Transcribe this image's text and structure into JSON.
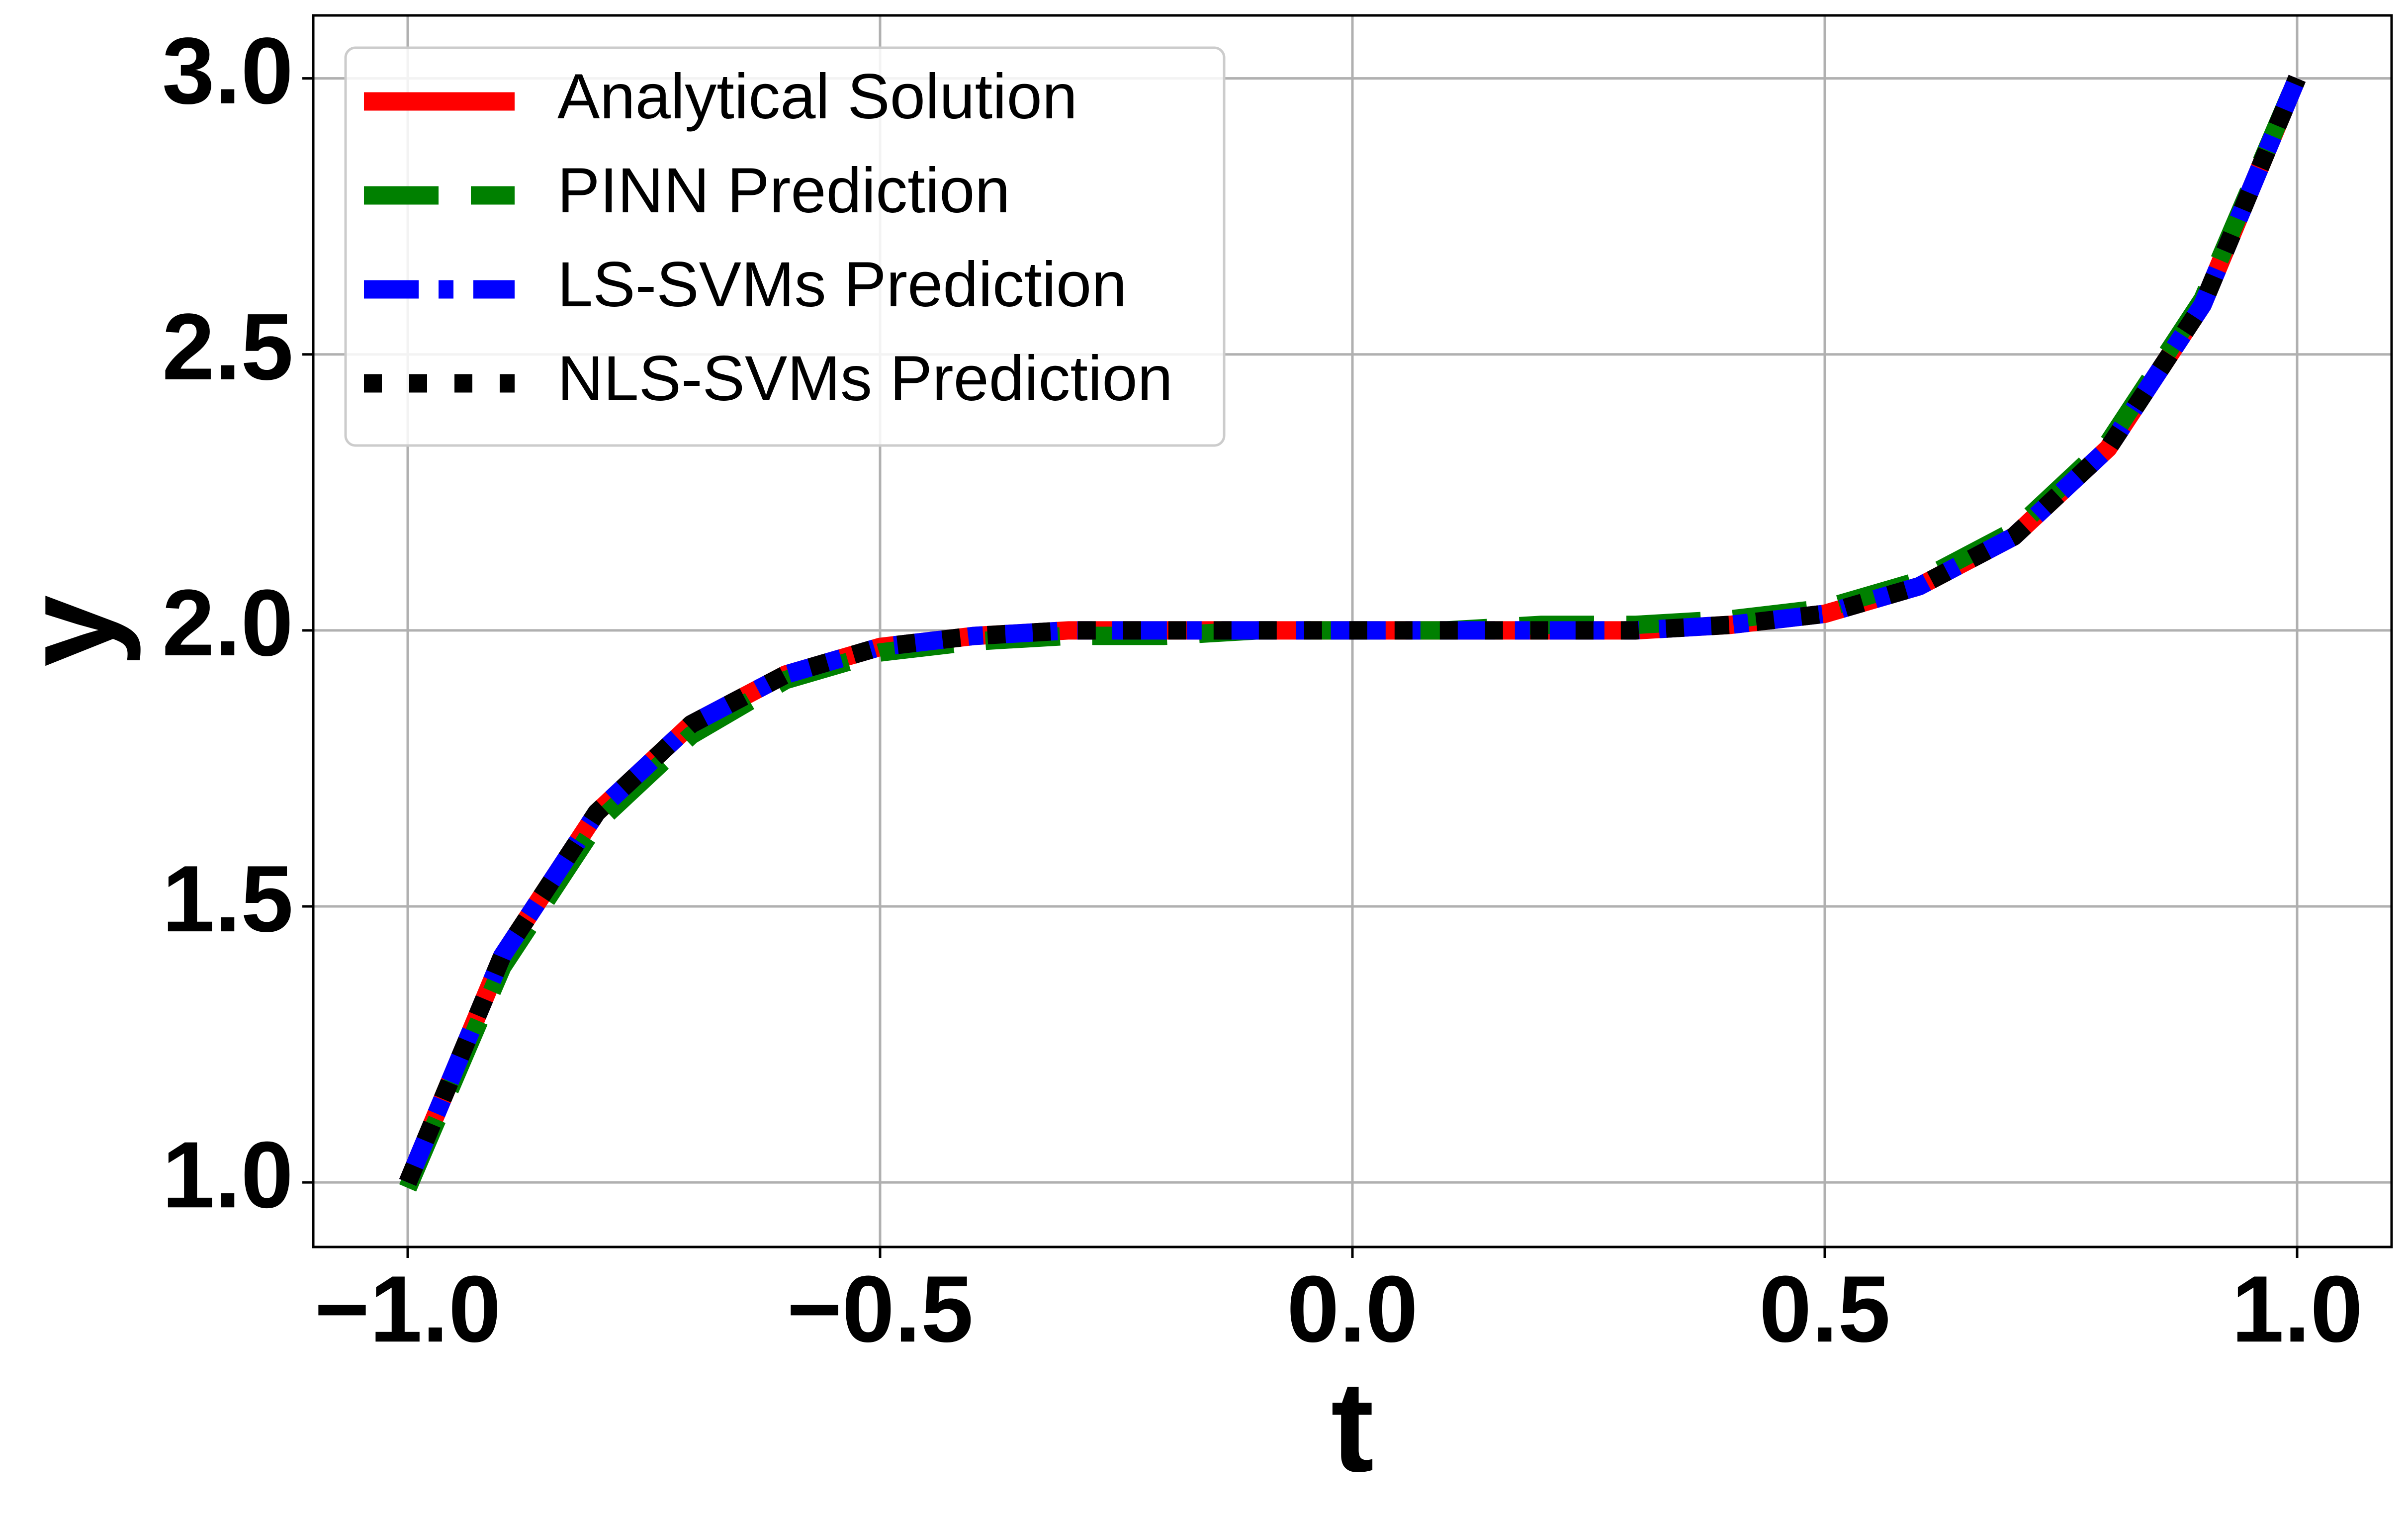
{
  "chart_data": {
    "type": "line",
    "xlabel": "t",
    "ylabel": "y",
    "x": [
      -1.0,
      -0.9,
      -0.8,
      -0.7,
      -0.6,
      -0.5,
      -0.4,
      -0.3,
      -0.2,
      -0.1,
      0.0,
      0.1,
      0.2,
      0.3,
      0.4,
      0.5,
      0.6,
      0.7,
      0.8,
      0.9,
      1.0
    ],
    "series": [
      {
        "name": "Analytical Solution",
        "color": "#ff0000",
        "linestyle": "solid",
        "values": [
          1.0,
          1.41,
          1.67,
          1.83,
          1.92,
          1.97,
          1.99,
          2.0,
          2.0,
          2.0,
          2.0,
          2.0,
          2.0,
          2.0,
          2.01,
          2.03,
          2.08,
          2.17,
          2.33,
          2.59,
          3.0
        ]
      },
      {
        "name": "PINN Prediction",
        "color": "#008000",
        "linestyle": "dashed",
        "values": [
          0.99,
          1.39,
          1.65,
          1.81,
          1.91,
          1.96,
          1.98,
          1.99,
          1.99,
          2.0,
          2.0,
          2.0,
          2.01,
          2.01,
          2.02,
          2.04,
          2.09,
          2.18,
          2.34,
          2.6,
          3.0
        ]
      },
      {
        "name": "LS-SVMs Prediction",
        "color": "#0000ff",
        "linestyle": "dashdot",
        "values": [
          1.0,
          1.41,
          1.67,
          1.83,
          1.92,
          1.97,
          1.99,
          2.0,
          2.0,
          2.0,
          2.0,
          2.0,
          2.0,
          2.0,
          2.01,
          2.03,
          2.08,
          2.17,
          2.33,
          2.59,
          3.0
        ]
      },
      {
        "name": "NLS-SVMs Prediction",
        "color": "#000000",
        "linestyle": "dotted",
        "values": [
          1.0,
          1.41,
          1.67,
          1.83,
          1.92,
          1.97,
          1.99,
          2.0,
          2.0,
          2.0,
          2.0,
          2.0,
          2.0,
          2.0,
          2.01,
          2.03,
          2.08,
          2.17,
          2.33,
          2.59,
          3.0
        ]
      }
    ],
    "xlim": [
      -1.1,
      1.1
    ],
    "ylim": [
      0.883,
      3.114
    ],
    "xticks": [
      {
        "value": -1.0,
        "label": "−1.0"
      },
      {
        "value": -0.5,
        "label": "−0.5"
      },
      {
        "value": 0.0,
        "label": "0.0"
      },
      0.5,
      {
        "value": 1.0,
        "label": "1.0"
      }
    ],
    "yticks": [
      {
        "value": 1.0,
        "label": "1.0"
      },
      1.5,
      {
        "value": 2.0,
        "label": "2.0"
      },
      2.5,
      {
        "value": 3.0,
        "label": "3.0"
      }
    ],
    "grid": true,
    "legend": "upper left"
  }
}
